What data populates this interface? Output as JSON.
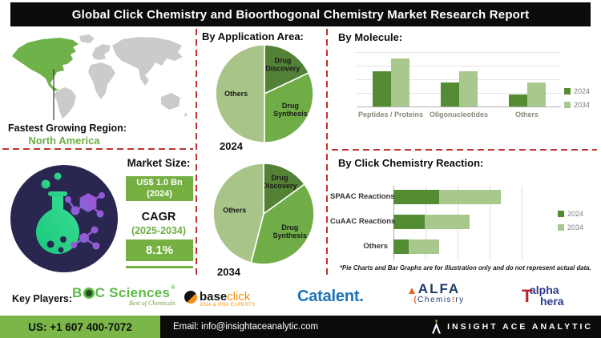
{
  "title": "Global Click Chemistry and Bioorthogonal Chemistry Market Research Report",
  "region": {
    "label": "Fastest Growing Region:",
    "value": "North America"
  },
  "market": {
    "title": "Market Size:",
    "value_line1": "US$ 1.0 Bn",
    "value_line2": "(2024)",
    "cagr_label": "CAGR",
    "cagr_period": "(2025-2034)",
    "cagr_value": "8.1%"
  },
  "sections": {
    "application": "By Application Area:",
    "molecule": "By Molecule:",
    "reaction": "By Click Chemistry Reaction:"
  },
  "footnote": "*Pie Charts and Bar Graphs are for illustration only and do not represent actual data.",
  "chart_data": [
    {
      "type": "pie",
      "title": "By Application Area:",
      "year": "2024",
      "labels": [
        "Drug Discovery",
        "Drug Synthesis",
        "Others"
      ],
      "values": [
        18,
        32,
        50
      ],
      "colors": [
        "#538135",
        "#70ad47",
        "#a9c489"
      ],
      "label_r": [
        0.7,
        0.63,
        0.58
      ]
    },
    {
      "type": "pie",
      "title": "By Application Area:",
      "year": "2034",
      "labels": [
        "Drug Discovery",
        "Drug Synthesis",
        "Others"
      ],
      "values": [
        15,
        39,
        46
      ],
      "colors": [
        "#538135",
        "#70ad47",
        "#a9c489"
      ],
      "label_r": [
        0.7,
        0.63,
        0.58
      ]
    },
    {
      "type": "bar",
      "title": "By Molecule:",
      "categories": [
        "Peptides / Proteins",
        "Oligonucleotides",
        "Others"
      ],
      "series": [
        {
          "name": "2024",
          "color": "#538c33",
          "values": [
            65,
            44,
            22
          ]
        },
        {
          "name": "2034",
          "color": "#a8c88e",
          "values": [
            88,
            65,
            44
          ]
        }
      ],
      "ylim": [
        0,
        100
      ],
      "grid": true,
      "legend_position": "right"
    },
    {
      "type": "bar-horizontal-stacked",
      "title": "By Click Chemistry Reaction:",
      "categories": [
        "SPAAC Reactions",
        "CuAAC Reactions",
        "Others"
      ],
      "series": [
        {
          "name": "2024",
          "color": "#538c33",
          "values": [
            37,
            25,
            12
          ]
        },
        {
          "name": "2034",
          "color": "#a8c88e",
          "values": [
            50,
            37,
            25
          ]
        }
      ],
      "xlim": [
        0,
        104
      ],
      "grid": true,
      "legend_position": "right"
    }
  ],
  "key_players": {
    "label": "Key Players:",
    "boc": {
      "b": "B",
      "c_rest": "C Sciences",
      "reg": "®",
      "tagline": "Best of Chemicals"
    },
    "baseclick": {
      "base": "base",
      "click": "click",
      "tagline": "DNA & RNA EXPERTS"
    },
    "catalent": {
      "name": "Catalent."
    },
    "alfa": {
      "full": "ALFA Chemistry",
      "line1": "ALFA",
      "flask_mark": "(",
      "line2_pre": "Chemis",
      "line2_t": "t",
      "line2_post": "ry"
    },
    "alphathera": {
      "full": "alphaThera",
      "top": "alpha",
      "t": "T",
      "bottom": "hera"
    }
  },
  "footer": {
    "phone": "US: +1 607 400-7072",
    "email": "Email: info@insightaceanalytic.com",
    "brand": "INSIGHT ACE ANALYTIC"
  },
  "colors": {
    "accent_green": "#76b043",
    "divider_red": "#bf3430",
    "navy_circle": "#292650",
    "footer_green": "#7ab648",
    "map_region_green": "#6fb24a",
    "text_green": "#6fae46"
  }
}
